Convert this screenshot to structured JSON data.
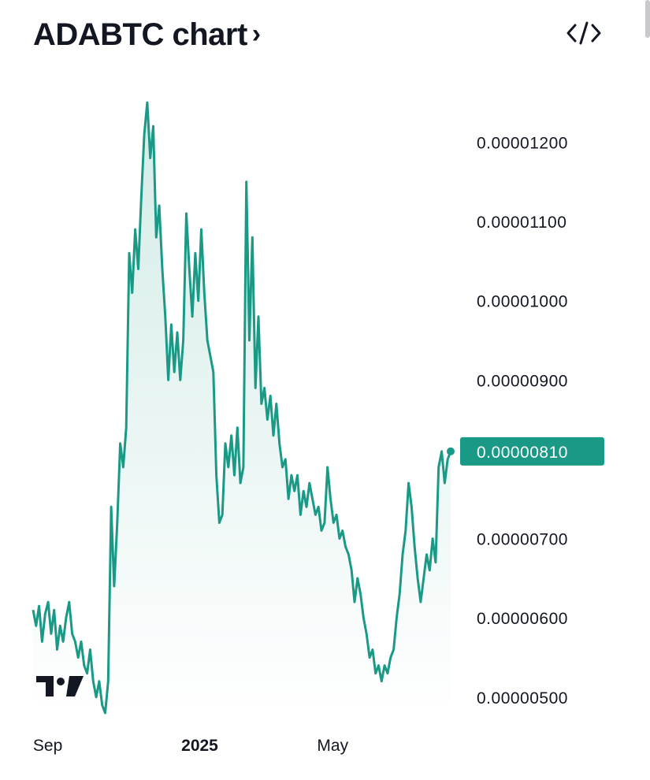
{
  "header": {
    "title": "ADABTC chart",
    "chevron": "›",
    "embed_icon": "code-embed-icon"
  },
  "colors": {
    "line": "#1a9a86",
    "area_top": "#cfeae5",
    "area_bottom": "#ffffff",
    "badge": "#1a9a86",
    "text": "#131722"
  },
  "chart_data": {
    "type": "area",
    "title": "ADABTC chart",
    "xlabel": "",
    "ylabel": "",
    "x_ticks": [
      {
        "label": "Sep",
        "t": 0.03,
        "bold": false
      },
      {
        "label": "2025",
        "t": 0.355,
        "bold": true
      },
      {
        "label": "May",
        "t": 0.68,
        "bold": false
      }
    ],
    "y_ticks": [
      "0.00001200",
      "0.00001100",
      "0.00001000",
      "0.00000900",
      "0.00000700",
      "0.00000600",
      "0.00000500"
    ],
    "ylim": [
      4.8e-06,
      1.26e-05
    ],
    "last_price": "0.00000810",
    "last_value": 8.1e-06,
    "grid": false,
    "series": [
      {
        "values": [
          6.1e-06,
          5.9e-06,
          6.15e-06,
          5.7e-06,
          6.05e-06,
          6.2e-06,
          5.8e-06,
          6.1e-06,
          5.6e-06,
          5.9e-06,
          5.7e-06,
          6e-06,
          6.2e-06,
          5.8e-06,
          5.7e-06,
          5.5e-06,
          5.7e-06,
          5.4e-06,
          5.3e-06,
          5.6e-06,
          5.2e-06,
          5e-06,
          5.2e-06,
          4.9e-06,
          4.8e-06,
          5.2e-06,
          7.4e-06,
          6.4e-06,
          7.2e-06,
          8.2e-06,
          7.9e-06,
          8.4e-06,
          1.06e-05,
          1.01e-05,
          1.09e-05,
          1.04e-05,
          1.13e-05,
          1.21e-05,
          1.25e-05,
          1.18e-05,
          1.22e-05,
          1.08e-05,
          1.12e-05,
          1.04e-05,
          9.8e-06,
          9e-06,
          9.7e-06,
          9.1e-06,
          9.6e-06,
          9e-06,
          9.5e-06,
          1.11e-05,
          1.04e-05,
          9.8e-06,
          1.06e-05,
          1e-05,
          1.09e-05,
          1.01e-05,
          9.5e-06,
          9.3e-06,
          9.1e-06,
          7.8e-06,
          7.2e-06,
          7.3e-06,
          8.2e-06,
          7.9e-06,
          8.3e-06,
          7.8e-06,
          8.4e-06,
          7.7e-06,
          7.9e-06,
          1.15e-05,
          9.5e-06,
          1.08e-05,
          8.9e-06,
          9.8e-06,
          8.7e-06,
          8.9e-06,
          8.5e-06,
          8.8e-06,
          8.3e-06,
          8.7e-06,
          8.2e-06,
          7.9e-06,
          8e-06,
          7.5e-06,
          7.8e-06,
          7.6e-06,
          7.8e-06,
          7.3e-06,
          7.6e-06,
          7.4e-06,
          7.7e-06,
          7.5e-06,
          7.3e-06,
          7.4e-06,
          7.1e-06,
          7.2e-06,
          7.9e-06,
          7.5e-06,
          7.2e-06,
          7.3e-06,
          7e-06,
          7.1e-06,
          6.9e-06,
          6.8e-06,
          6.6e-06,
          6.2e-06,
          6.5e-06,
          6.3e-06,
          6e-06,
          5.8e-06,
          5.5e-06,
          5.6e-06,
          5.3e-06,
          5.4e-06,
          5.2e-06,
          5.4e-06,
          5.3e-06,
          5.5e-06,
          5.6e-06,
          6e-06,
          6.3e-06,
          6.8e-06,
          7.1e-06,
          7.7e-06,
          7.4e-06,
          6.9e-06,
          6.5e-06,
          6.2e-06,
          6.5e-06,
          6.8e-06,
          6.6e-06,
          7e-06,
          6.7e-06,
          7.9e-06,
          8.1e-06,
          7.7e-06,
          8e-06,
          8.1e-06
        ]
      }
    ]
  }
}
